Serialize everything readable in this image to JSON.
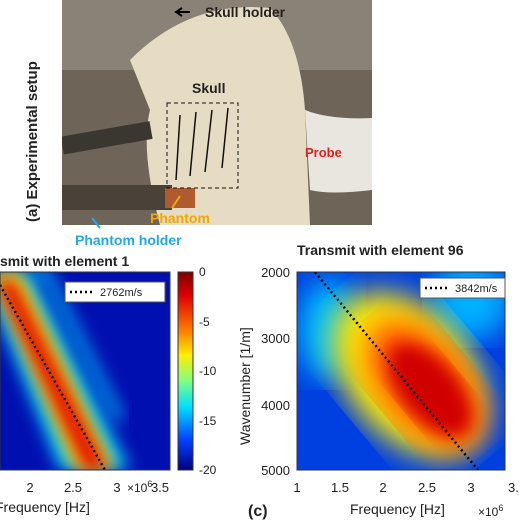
{
  "photo": {
    "panel_label": "(a) Experimental setup",
    "labels": {
      "skull_holder": "Skull holder",
      "skull": "Skull",
      "probe": "Probe",
      "phantom": "Phantom",
      "phantom_holder": "Phantom holder"
    }
  },
  "panel_b": {
    "title": "smit with element 1",
    "legend": "2762m/s",
    "xticks": [
      "2",
      "2.5",
      "3",
      "3.5"
    ],
    "xlabel": "Frequency [Hz]",
    "xscale": "×10",
    "xscale_exp": "6",
    "colorbar_ticks": [
      "0",
      "-5",
      "-10",
      "-15",
      "-20"
    ]
  },
  "panel_c": {
    "panel_label": "(c)",
    "title": "Transmit with element 96",
    "legend": "3842m/s",
    "xticks": [
      "1",
      "1.5",
      "2",
      "2.5",
      "3",
      "3."
    ],
    "yticks": [
      "2000",
      "3000",
      "4000",
      "5000"
    ],
    "xlabel": "Frequency [Hz]",
    "ylabel": "Wavenumber [1/m]",
    "xscale": "×10",
    "xscale_exp": "6"
  }
}
